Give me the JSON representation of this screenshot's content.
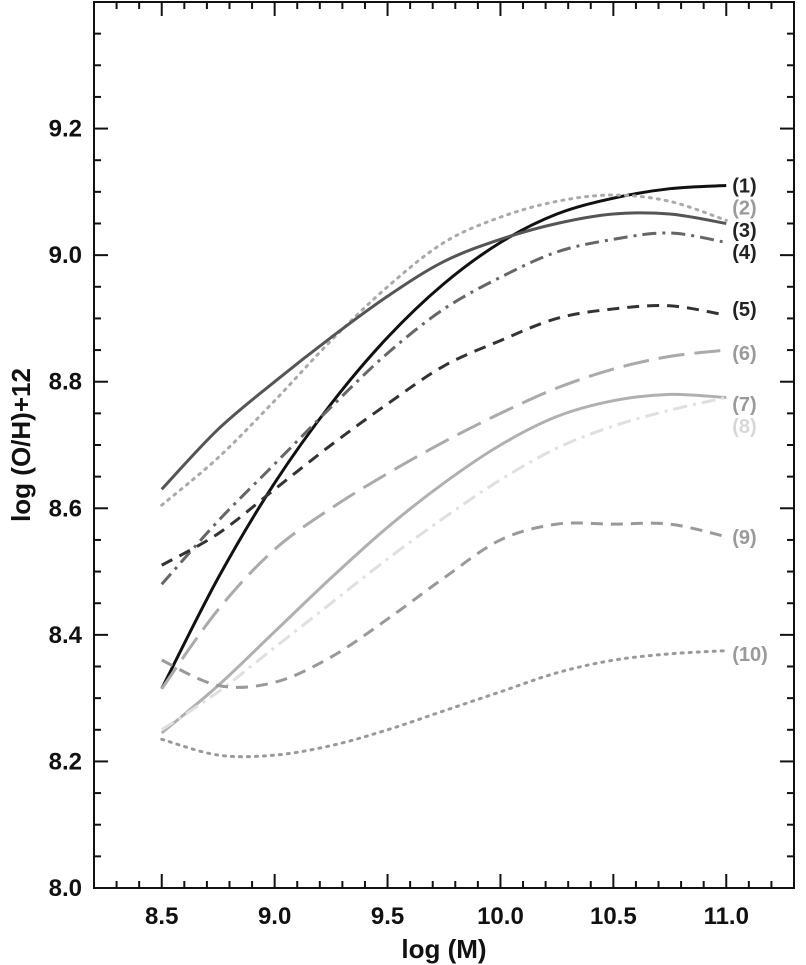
{
  "chart_data": {
    "type": "line",
    "title": "",
    "xlabel": "log (M)",
    "ylabel": "log (O/H)+12",
    "xlim": [
      8.2,
      11.3
    ],
    "ylim": [
      8.0,
      9.4
    ],
    "xticks": [
      8.5,
      9.0,
      9.5,
      10.0,
      10.5,
      11.0
    ],
    "yticks": [
      8.0,
      8.2,
      8.4,
      8.6,
      8.8,
      9.0,
      9.2
    ],
    "x_tick_labels": [
      "8.5",
      "9.0",
      "9.5",
      "10.0",
      "10.5",
      "11.0"
    ],
    "y_tick_labels": [
      "8.0",
      "8.2",
      "8.4",
      "8.6",
      "8.8",
      "9.0",
      "9.2"
    ],
    "x_minor_step": 0.1,
    "y_minor_step": 0.05,
    "grid": false,
    "legend": "inline labels at right end of curves",
    "x": [
      8.5,
      8.75,
      9.0,
      9.25,
      9.5,
      9.75,
      10.0,
      10.25,
      10.5,
      10.75,
      11.0
    ],
    "series": [
      {
        "name": "(1)",
        "color": "#111111",
        "dash": "solid",
        "values": [
          8.315,
          8.49,
          8.64,
          8.765,
          8.87,
          8.955,
          9.02,
          9.065,
          9.09,
          9.105,
          9.11
        ]
      },
      {
        "name": "(2)",
        "color": "#aaaaaa",
        "dash": "dotted",
        "values": [
          8.605,
          8.68,
          8.77,
          8.865,
          8.95,
          9.02,
          9.06,
          9.085,
          9.095,
          9.085,
          9.055
        ]
      },
      {
        "name": "(3)",
        "color": "#555555",
        "dash": "solid",
        "values": [
          8.63,
          8.725,
          8.8,
          8.87,
          8.935,
          8.99,
          9.025,
          9.05,
          9.065,
          9.065,
          9.05
        ]
      },
      {
        "name": "(4)",
        "color": "#666666",
        "dash": "dashdot",
        "values": [
          8.48,
          8.58,
          8.67,
          8.76,
          8.845,
          8.915,
          8.965,
          9.005,
          9.025,
          9.035,
          9.02
        ]
      },
      {
        "name": "(5)",
        "color": "#333333",
        "dash": "dashed",
        "values": [
          8.51,
          8.56,
          8.63,
          8.7,
          8.765,
          8.825,
          8.865,
          8.9,
          8.915,
          8.92,
          8.905
        ]
      },
      {
        "name": "(6)",
        "color": "#aaaaaa",
        "dash": "longdash",
        "values": [
          8.315,
          8.44,
          8.535,
          8.6,
          8.655,
          8.705,
          8.75,
          8.79,
          8.82,
          8.84,
          8.85
        ]
      },
      {
        "name": "(7)",
        "color": "#b0b0b0",
        "dash": "solid",
        "values": [
          8.245,
          8.32,
          8.405,
          8.49,
          8.57,
          8.64,
          8.7,
          8.745,
          8.77,
          8.78,
          8.775
        ]
      },
      {
        "name": "(8)",
        "color": "#e0e0e0",
        "dash": "dashdot",
        "values": [
          8.25,
          8.31,
          8.38,
          8.45,
          8.52,
          8.585,
          8.645,
          8.695,
          8.73,
          8.755,
          8.775
        ]
      },
      {
        "name": "(9)",
        "color": "#999999",
        "dash": "dashed",
        "values": [
          8.36,
          8.32,
          8.325,
          8.365,
          8.425,
          8.49,
          8.55,
          8.575,
          8.575,
          8.575,
          8.555
        ]
      },
      {
        "name": "(10)",
        "color": "#999999",
        "dash": "dotted",
        "values": [
          8.235,
          8.21,
          8.21,
          8.225,
          8.25,
          8.28,
          8.31,
          8.34,
          8.36,
          8.37,
          8.375
        ]
      }
    ]
  }
}
